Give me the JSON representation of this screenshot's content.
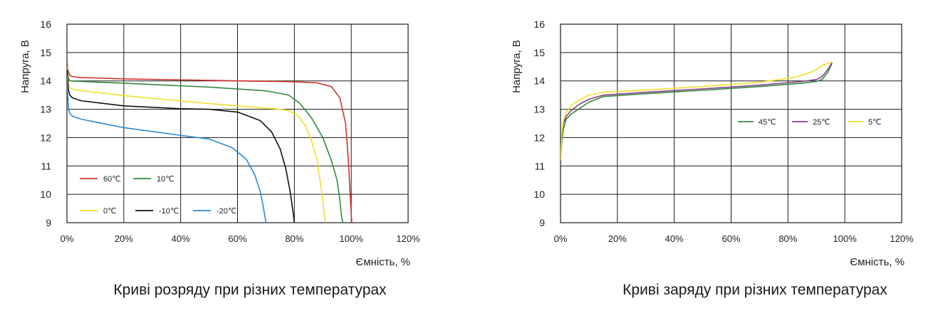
{
  "chart_data": [
    {
      "type": "line",
      "caption": "Криві розряду при різних температурах",
      "ylabel": "Напруга, В",
      "xlabel": "Ємність, %",
      "xlim": [
        0,
        120
      ],
      "ylim": [
        9,
        16
      ],
      "xticks": [
        0,
        20,
        40,
        60,
        80,
        100,
        120
      ],
      "xtick_labels": [
        "0%",
        "20%",
        "40%",
        "60%",
        "80%",
        "100%",
        "120%"
      ],
      "yticks": [
        9,
        10,
        11,
        12,
        13,
        14,
        15,
        16
      ],
      "ytick_labels": [
        "9",
        "10",
        "11",
        "12",
        "13",
        "14",
        "15",
        "16"
      ],
      "grid": true,
      "legend_placement": "bottom-left",
      "series": [
        {
          "name": "60℃",
          "color": "#d0312d",
          "x": [
            0,
            0.3,
            1,
            2,
            5,
            20,
            50,
            80,
            88,
            93,
            96,
            98,
            99,
            99.5,
            100,
            100.2
          ],
          "y": [
            14.7,
            14.4,
            14.2,
            14.15,
            14.12,
            14.07,
            14.02,
            13.97,
            13.93,
            13.8,
            13.4,
            12.5,
            11.2,
            10.2,
            9.3,
            9
          ]
        },
        {
          "name": "10℃",
          "color": "#2e8b3e",
          "x": [
            0,
            0.5,
            1,
            5,
            20,
            50,
            70,
            78,
            82,
            86,
            90,
            93,
            95,
            96,
            96.5,
            97
          ],
          "y": [
            14.6,
            14.1,
            14.0,
            13.98,
            13.92,
            13.78,
            13.65,
            13.5,
            13.2,
            12.7,
            12.0,
            11.2,
            10.5,
            9.8,
            9.3,
            9
          ]
        },
        {
          "name": "0℃",
          "color": "#f2df2a",
          "x": [
            0,
            0.5,
            1,
            3,
            20,
            50,
            75,
            78,
            81,
            84,
            86,
            88,
            89,
            90,
            90.5,
            91
          ],
          "y": [
            14.5,
            13.9,
            13.75,
            13.68,
            13.48,
            13.2,
            13.0,
            12.95,
            12.8,
            12.4,
            11.9,
            11.2,
            10.5,
            9.8,
            9.3,
            9
          ]
        },
        {
          "name": "-10℃",
          "color": "#111111",
          "x": [
            0,
            0.5,
            1,
            2,
            5,
            20,
            40,
            50,
            60,
            68,
            72,
            75,
            77,
            78.5,
            79.5,
            80
          ],
          "y": [
            14.4,
            13.7,
            13.5,
            13.4,
            13.3,
            13.12,
            13.02,
            13.0,
            12.9,
            12.6,
            12.2,
            11.6,
            10.9,
            10.1,
            9.4,
            9
          ]
        },
        {
          "name": "-20℃",
          "color": "#2a8ad4",
          "x": [
            0,
            0.3,
            0.6,
            1,
            2,
            5,
            20,
            40,
            50,
            58,
            63,
            66,
            68,
            69,
            69.5,
            70
          ],
          "y": [
            14.2,
            13.4,
            13.0,
            12.85,
            12.75,
            12.65,
            12.35,
            12.08,
            11.95,
            11.65,
            11.25,
            10.7,
            10.1,
            9.6,
            9.3,
            9
          ]
        }
      ]
    },
    {
      "type": "line",
      "caption": "Криві заряду при різних температурах",
      "ylabel": "Напруга, В",
      "xlabel": "Ємність, %",
      "xlim": [
        0,
        120
      ],
      "ylim": [
        9,
        16
      ],
      "xticks": [
        0,
        20,
        40,
        60,
        80,
        100,
        120
      ],
      "xtick_labels": [
        "0%",
        "20%",
        "40%",
        "60%",
        "80%",
        "100%",
        "120%"
      ],
      "yticks": [
        9,
        10,
        11,
        12,
        13,
        14,
        15,
        16
      ],
      "ytick_labels": [
        "9",
        "10",
        "11",
        "12",
        "13",
        "14",
        "15",
        "16"
      ],
      "grid": true,
      "legend_placement": "center-right",
      "series": [
        {
          "name": "45℃",
          "color": "#2e8b3e",
          "x": [
            0,
            0.5,
            1,
            2,
            4,
            7,
            10,
            15,
            30,
            50,
            70,
            85,
            90,
            92,
            94,
            95.5
          ],
          "y": [
            11.2,
            11.9,
            12.3,
            12.65,
            12.85,
            13.05,
            13.25,
            13.45,
            13.55,
            13.67,
            13.8,
            13.92,
            13.98,
            14.05,
            14.3,
            14.62
          ]
        },
        {
          "name": "25℃",
          "color": "#8a3f86",
          "x": [
            0,
            0.5,
            1,
            2,
            4,
            7,
            10,
            15,
            30,
            50,
            70,
            85,
            90,
            92,
            94,
            95.5
          ],
          "y": [
            11.2,
            12.1,
            12.5,
            12.75,
            12.98,
            13.2,
            13.35,
            13.5,
            13.6,
            13.72,
            13.85,
            13.98,
            14.05,
            14.15,
            14.4,
            14.65
          ]
        },
        {
          "name": "5℃",
          "color": "#f2df2a",
          "x": [
            0,
            0.5,
            1,
            2,
            4,
            7,
            10,
            15,
            30,
            50,
            70,
            82,
            88,
            90,
            92,
            95.5
          ],
          "y": [
            11.2,
            12.2,
            12.6,
            12.9,
            13.15,
            13.35,
            13.5,
            13.6,
            13.68,
            13.8,
            13.95,
            14.12,
            14.3,
            14.4,
            14.55,
            14.66
          ]
        }
      ]
    }
  ]
}
